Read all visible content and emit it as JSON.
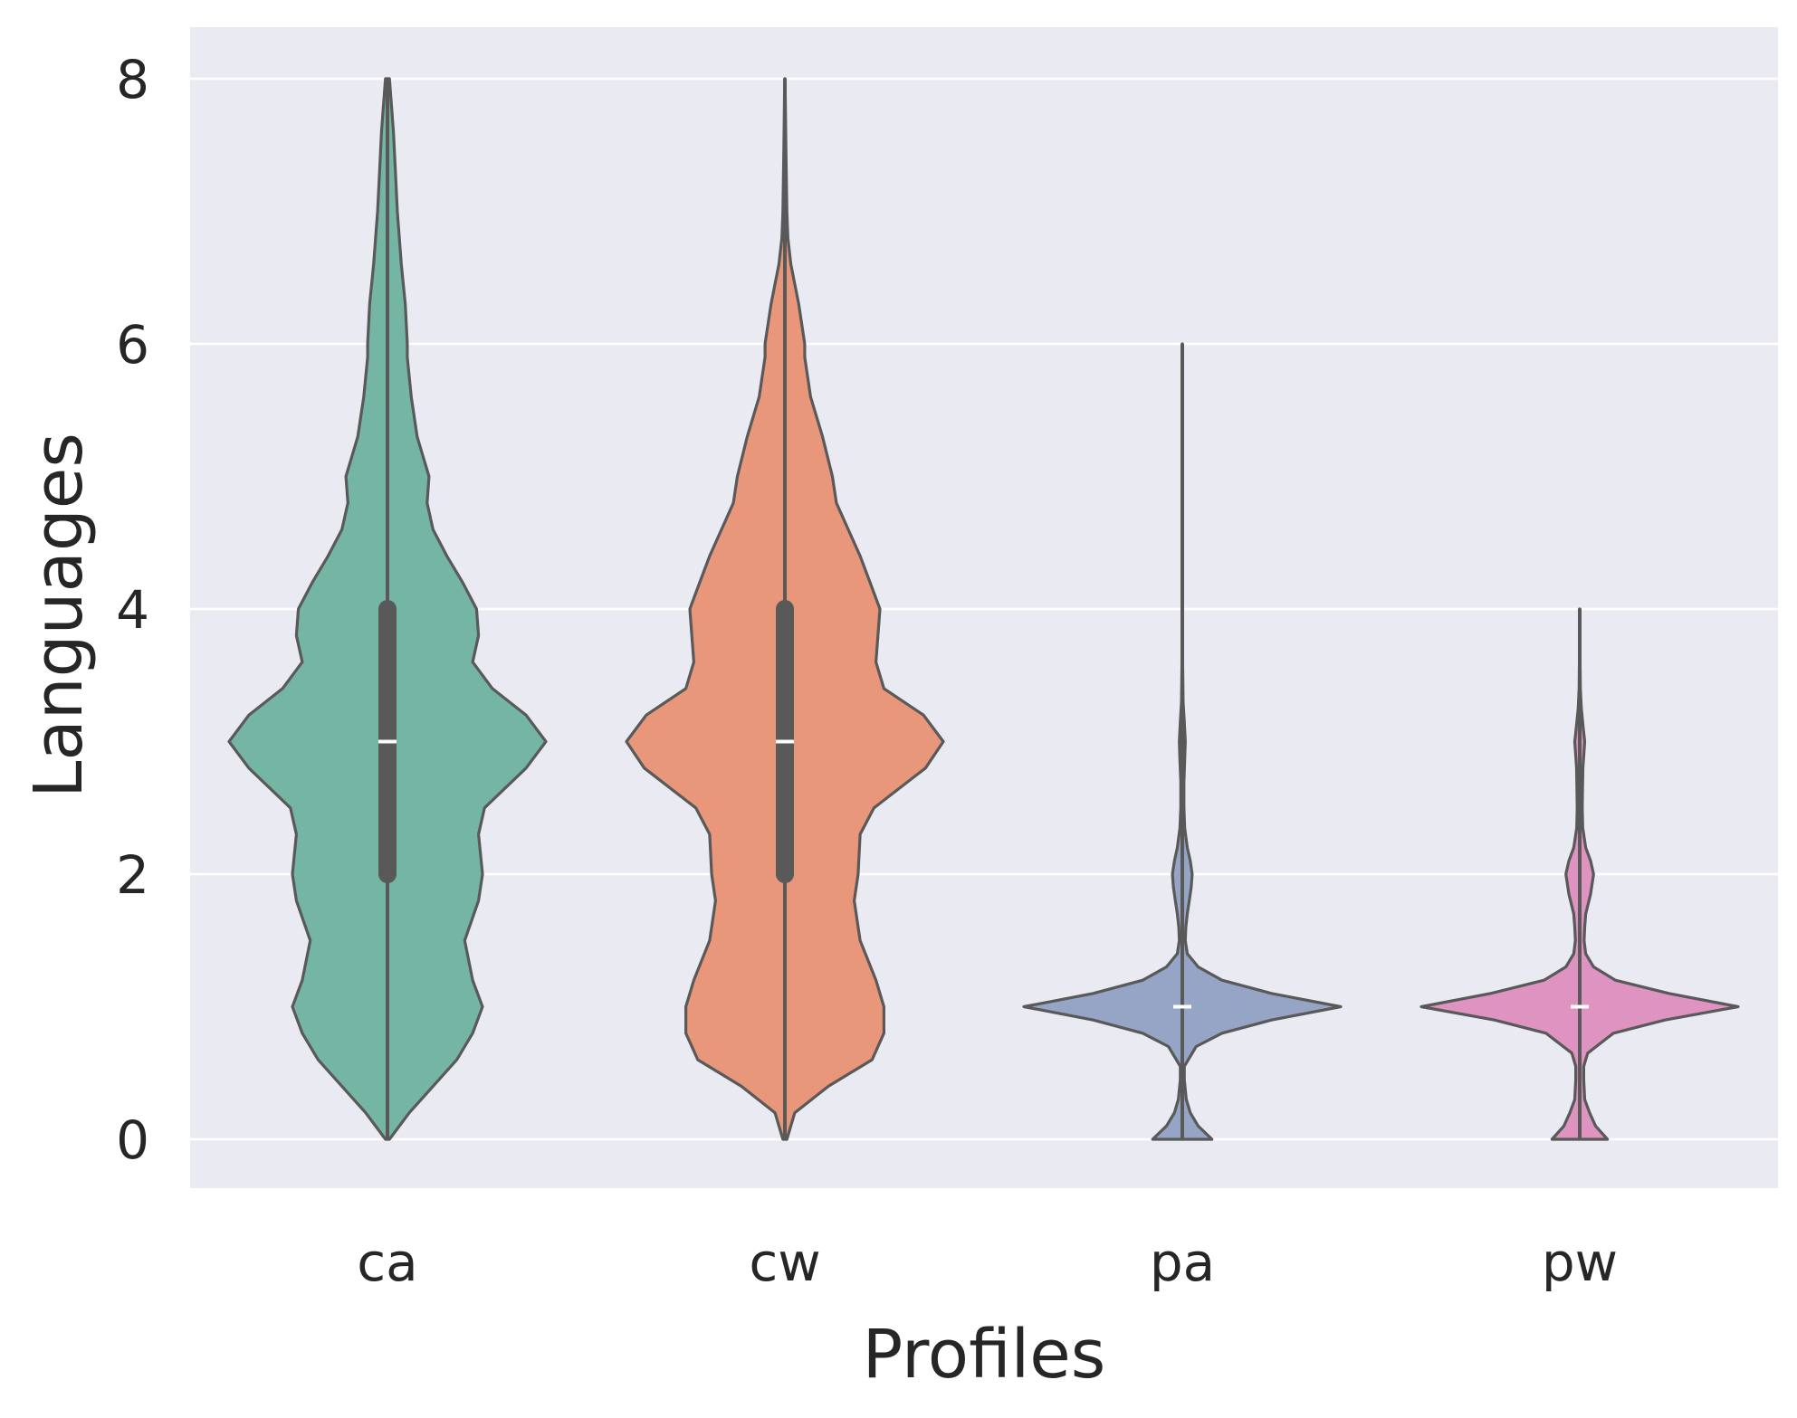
{
  "chart_data": {
    "type": "violin",
    "xlabel": "Profiles",
    "ylabel": "Languages",
    "ylim": [
      -0.4,
      8.4
    ],
    "yticks": [
      0,
      2,
      4,
      6,
      8
    ],
    "ytick_labels": [
      "0",
      "2",
      "4",
      "6",
      "8"
    ],
    "grid": true,
    "background": "#eaeaf2",
    "grid_color": "#ffffff",
    "outline_color": "#595959",
    "categories": [
      "ca",
      "cw",
      "pa",
      "pw"
    ],
    "violins": [
      {
        "category": "ca",
        "color": "#74b6a3",
        "min": 0,
        "max": 8,
        "q1": 2,
        "median": 3,
        "q3": 4,
        "density": [
          [
            0,
            0.01
          ],
          [
            0.2,
            0.11
          ],
          [
            0.4,
            0.23
          ],
          [
            0.6,
            0.35
          ],
          [
            0.8,
            0.43
          ],
          [
            1.0,
            0.48
          ],
          [
            1.2,
            0.43
          ],
          [
            1.5,
            0.39
          ],
          [
            1.8,
            0.46
          ],
          [
            2.0,
            0.48
          ],
          [
            2.3,
            0.46
          ],
          [
            2.5,
            0.49
          ],
          [
            2.8,
            0.7
          ],
          [
            3.0,
            0.8
          ],
          [
            3.2,
            0.7
          ],
          [
            3.4,
            0.53
          ],
          [
            3.6,
            0.43
          ],
          [
            3.8,
            0.46
          ],
          [
            4.0,
            0.45
          ],
          [
            4.2,
            0.38
          ],
          [
            4.4,
            0.3
          ],
          [
            4.6,
            0.23
          ],
          [
            4.8,
            0.2
          ],
          [
            5.0,
            0.21
          ],
          [
            5.3,
            0.15
          ],
          [
            5.6,
            0.12
          ],
          [
            5.9,
            0.1
          ],
          [
            6.0,
            0.1
          ],
          [
            6.3,
            0.09
          ],
          [
            6.6,
            0.07
          ],
          [
            7.0,
            0.05
          ],
          [
            7.3,
            0.04
          ],
          [
            7.6,
            0.03
          ],
          [
            8.0,
            0.01
          ]
        ]
      },
      {
        "category": "cw",
        "color": "#e9977a",
        "min": 0,
        "max": 8,
        "q1": 2,
        "median": 3,
        "q3": 4,
        "density": [
          [
            0,
            0.01
          ],
          [
            0.2,
            0.05
          ],
          [
            0.4,
            0.22
          ],
          [
            0.6,
            0.44
          ],
          [
            0.8,
            0.5
          ],
          [
            1.0,
            0.5
          ],
          [
            1.2,
            0.46
          ],
          [
            1.5,
            0.38
          ],
          [
            1.8,
            0.35
          ],
          [
            2.0,
            0.37
          ],
          [
            2.3,
            0.38
          ],
          [
            2.5,
            0.45
          ],
          [
            2.8,
            0.71
          ],
          [
            3.0,
            0.8
          ],
          [
            3.2,
            0.7
          ],
          [
            3.4,
            0.5
          ],
          [
            3.6,
            0.46
          ],
          [
            3.8,
            0.47
          ],
          [
            4.0,
            0.48
          ],
          [
            4.2,
            0.43
          ],
          [
            4.4,
            0.38
          ],
          [
            4.6,
            0.32
          ],
          [
            4.8,
            0.26
          ],
          [
            5.0,
            0.24
          ],
          [
            5.3,
            0.19
          ],
          [
            5.6,
            0.13
          ],
          [
            5.9,
            0.1
          ],
          [
            6.0,
            0.1
          ],
          [
            6.3,
            0.07
          ],
          [
            6.6,
            0.03
          ],
          [
            6.8,
            0.015
          ],
          [
            7.0,
            0.01
          ],
          [
            7.5,
            0.005
          ],
          [
            8.0,
            0.001
          ]
        ]
      },
      {
        "category": "pa",
        "color": "#96a5c5",
        "min": 0,
        "max": 6,
        "q1": 1,
        "median": 1,
        "q3": 1,
        "density": [
          [
            0,
            0.15
          ],
          [
            0.1,
            0.08
          ],
          [
            0.2,
            0.04
          ],
          [
            0.3,
            0.02
          ],
          [
            0.45,
            0.01
          ],
          [
            0.55,
            0.01
          ],
          [
            0.7,
            0.07
          ],
          [
            0.8,
            0.2
          ],
          [
            0.9,
            0.45
          ],
          [
            1.0,
            0.8
          ],
          [
            1.1,
            0.45
          ],
          [
            1.2,
            0.2
          ],
          [
            1.3,
            0.08
          ],
          [
            1.4,
            0.025
          ],
          [
            1.5,
            0.015
          ],
          [
            1.6,
            0.018
          ],
          [
            1.7,
            0.025
          ],
          [
            1.8,
            0.035
          ],
          [
            1.9,
            0.045
          ],
          [
            2.0,
            0.05
          ],
          [
            2.1,
            0.04
          ],
          [
            2.2,
            0.025
          ],
          [
            2.35,
            0.012
          ],
          [
            2.5,
            0.008
          ],
          [
            2.7,
            0.008
          ],
          [
            2.85,
            0.012
          ],
          [
            3.0,
            0.015
          ],
          [
            3.15,
            0.01
          ],
          [
            3.3,
            0.004
          ],
          [
            3.6,
            0.002
          ],
          [
            4.0,
            0.001
          ],
          [
            5.0,
            0.0008
          ],
          [
            6.0,
            0.0005
          ]
        ]
      },
      {
        "category": "pw",
        "color": "#de93c0",
        "min": 0,
        "max": 4,
        "q1": 1,
        "median": 1,
        "q3": 1,
        "density": [
          [
            0,
            0.14
          ],
          [
            0.1,
            0.08
          ],
          [
            0.2,
            0.05
          ],
          [
            0.3,
            0.025
          ],
          [
            0.45,
            0.02
          ],
          [
            0.55,
            0.02
          ],
          [
            0.65,
            0.04
          ],
          [
            0.8,
            0.17
          ],
          [
            0.9,
            0.43
          ],
          [
            1.0,
            0.8
          ],
          [
            1.1,
            0.45
          ],
          [
            1.2,
            0.18
          ],
          [
            1.3,
            0.07
          ],
          [
            1.4,
            0.03
          ],
          [
            1.5,
            0.022
          ],
          [
            1.6,
            0.025
          ],
          [
            1.7,
            0.03
          ],
          [
            1.85,
            0.055
          ],
          [
            2.0,
            0.07
          ],
          [
            2.1,
            0.055
          ],
          [
            2.2,
            0.03
          ],
          [
            2.35,
            0.015
          ],
          [
            2.5,
            0.013
          ],
          [
            2.65,
            0.014
          ],
          [
            2.8,
            0.016
          ],
          [
            3.0,
            0.025
          ],
          [
            3.1,
            0.018
          ],
          [
            3.25,
            0.008
          ],
          [
            3.4,
            0.003
          ],
          [
            3.6,
            0.002
          ],
          [
            4.0,
            0.001
          ]
        ]
      }
    ]
  }
}
